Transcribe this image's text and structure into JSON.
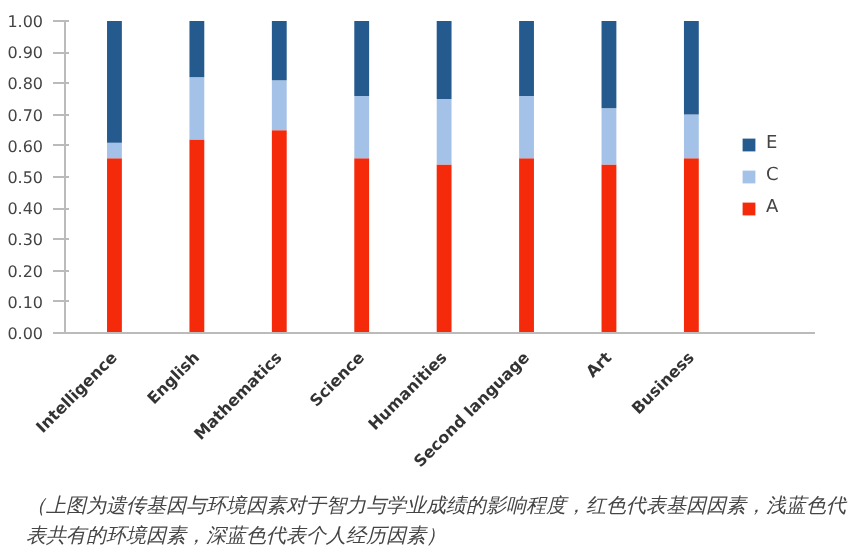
{
  "chart_data": {
    "type": "bar",
    "stacked": true,
    "categories": [
      "Intelligence",
      "English",
      "Mathematics",
      "Science",
      "Humanities",
      "Second language",
      "Art",
      "Business"
    ],
    "series": [
      {
        "name": "A",
        "color": "#f52a0a",
        "values": [
          0.56,
          0.62,
          0.65,
          0.56,
          0.54,
          0.56,
          0.54,
          0.56
        ]
      },
      {
        "name": "C",
        "color": "#a4c2e8",
        "values": [
          0.05,
          0.2,
          0.16,
          0.2,
          0.21,
          0.2,
          0.18,
          0.14
        ]
      },
      {
        "name": "E",
        "color": "#255a8e",
        "values": [
          0.39,
          0.18,
          0.19,
          0.24,
          0.25,
          0.24,
          0.28,
          0.3
        ]
      }
    ],
    "ylim": [
      0,
      1
    ],
    "yticks": [
      {
        "value": 0,
        "label": "0.00"
      },
      {
        "value": 0.1,
        "label": "0.10"
      },
      {
        "value": 0.2,
        "label": "0.20"
      },
      {
        "value": 0.3,
        "label": "0.30"
      },
      {
        "value": 0.4,
        "label": "0.40"
      },
      {
        "value": 0.5,
        "label": "0.50"
      },
      {
        "value": 0.6,
        "label": "0.60"
      },
      {
        "value": 0.7,
        "label": "0.70"
      },
      {
        "value": 0.8,
        "label": "0.80"
      },
      {
        "value": 0.9,
        "label": "0.90"
      },
      {
        "value": 1.0,
        "label": "1.00"
      }
    ],
    "legend": "right",
    "annotations": [
      "（上图为遗传基因与环境因素对于智力与学业成绩的影响程度，红色代表基因因素，浅蓝色代表共有的环境因素，深蓝色代表个人经历因素）"
    ]
  }
}
